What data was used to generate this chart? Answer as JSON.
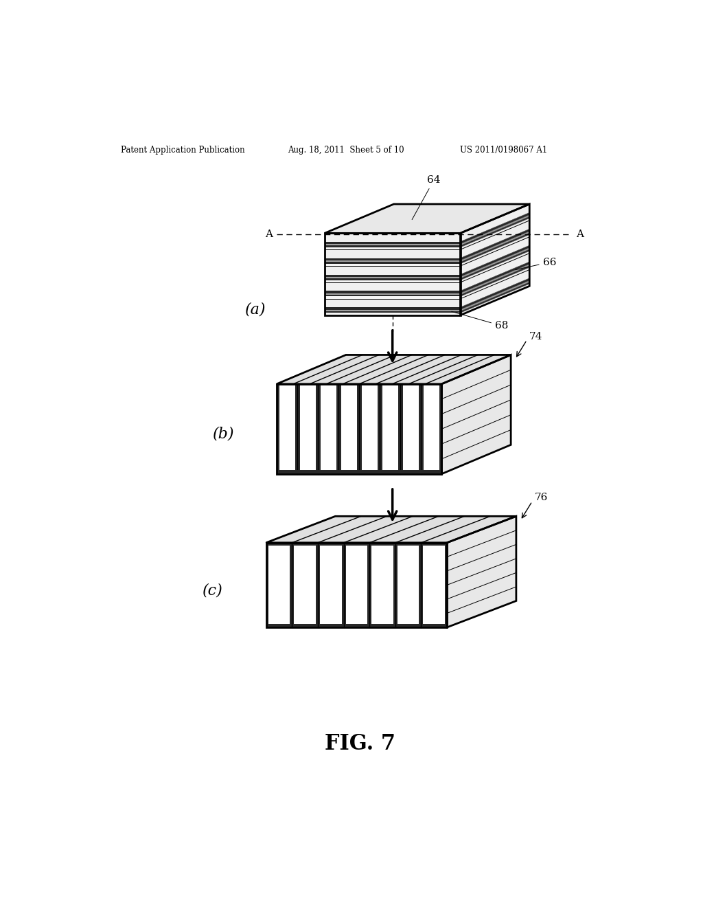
{
  "header_left": "Patent Application Publication",
  "header_mid": "Aug. 18, 2011  Sheet 5 of 10",
  "header_right": "US 2011/0198067 A1",
  "fig_label": "FIG. 7",
  "bg_color": "#ffffff",
  "lc": "#000000",
  "gray_top": "#e8e8e8",
  "gray_front": "#d8d8d8",
  "gray_side": "#c0c0c0",
  "gray_side2": "#b8b8b8",
  "stripe_dark": "#303030",
  "stripe_light": "#f0f0f0",
  "stripe_dotted": "#909090"
}
